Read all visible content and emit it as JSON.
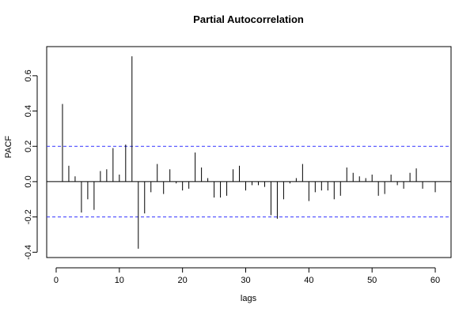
{
  "chart_data": {
    "type": "bar",
    "title": "Partial Autocorrelation",
    "xlabel": "lags",
    "ylabel": "PACF",
    "xlim": [
      -1.5,
      62.5
    ],
    "ylim": [
      -0.43,
      0.765
    ],
    "x_ticks": [
      0,
      10,
      20,
      30,
      40,
      50,
      60
    ],
    "x_tick_labels": [
      "0",
      "10",
      "20",
      "30",
      "40",
      "50",
      "60"
    ],
    "y_ticks": [
      -0.4,
      -0.2,
      0.0,
      0.2,
      0.4,
      0.6
    ],
    "y_tick_labels": [
      "-0.4",
      "-0.2",
      "0.0",
      "0.2",
      "0.4",
      "0.6"
    ],
    "confidence_bounds": [
      0.2,
      -0.2
    ],
    "bound_color": "#3333ff",
    "lags": [
      1,
      2,
      3,
      4,
      5,
      6,
      7,
      8,
      9,
      10,
      11,
      12,
      13,
      14,
      15,
      16,
      17,
      18,
      19,
      20,
      21,
      22,
      23,
      24,
      25,
      26,
      27,
      28,
      29,
      30,
      31,
      32,
      33,
      34,
      35,
      36,
      37,
      38,
      39,
      40,
      41,
      42,
      43,
      44,
      45,
      46,
      47,
      48,
      49,
      50,
      51,
      52,
      53,
      54,
      55,
      56,
      57,
      58,
      59,
      60
    ],
    "values": [
      0.44,
      0.09,
      0.03,
      -0.175,
      -0.1,
      -0.16,
      0.06,
      0.07,
      0.19,
      0.04,
      0.21,
      0.71,
      -0.38,
      -0.18,
      -0.06,
      0.1,
      -0.07,
      0.07,
      -0.01,
      -0.05,
      -0.04,
      0.165,
      0.08,
      0.02,
      -0.09,
      -0.09,
      -0.08,
      0.07,
      0.09,
      -0.05,
      -0.02,
      -0.02,
      -0.03,
      -0.19,
      -0.21,
      -0.1,
      -0.01,
      0.02,
      0.1,
      -0.11,
      -0.06,
      -0.05,
      -0.05,
      -0.1,
      -0.08,
      0.08,
      0.05,
      0.03,
      0.02,
      0.04,
      -0.08,
      -0.07,
      0.04,
      -0.02,
      -0.04,
      0.05,
      0.075,
      -0.04,
      -0.001,
      -0.06
    ]
  }
}
